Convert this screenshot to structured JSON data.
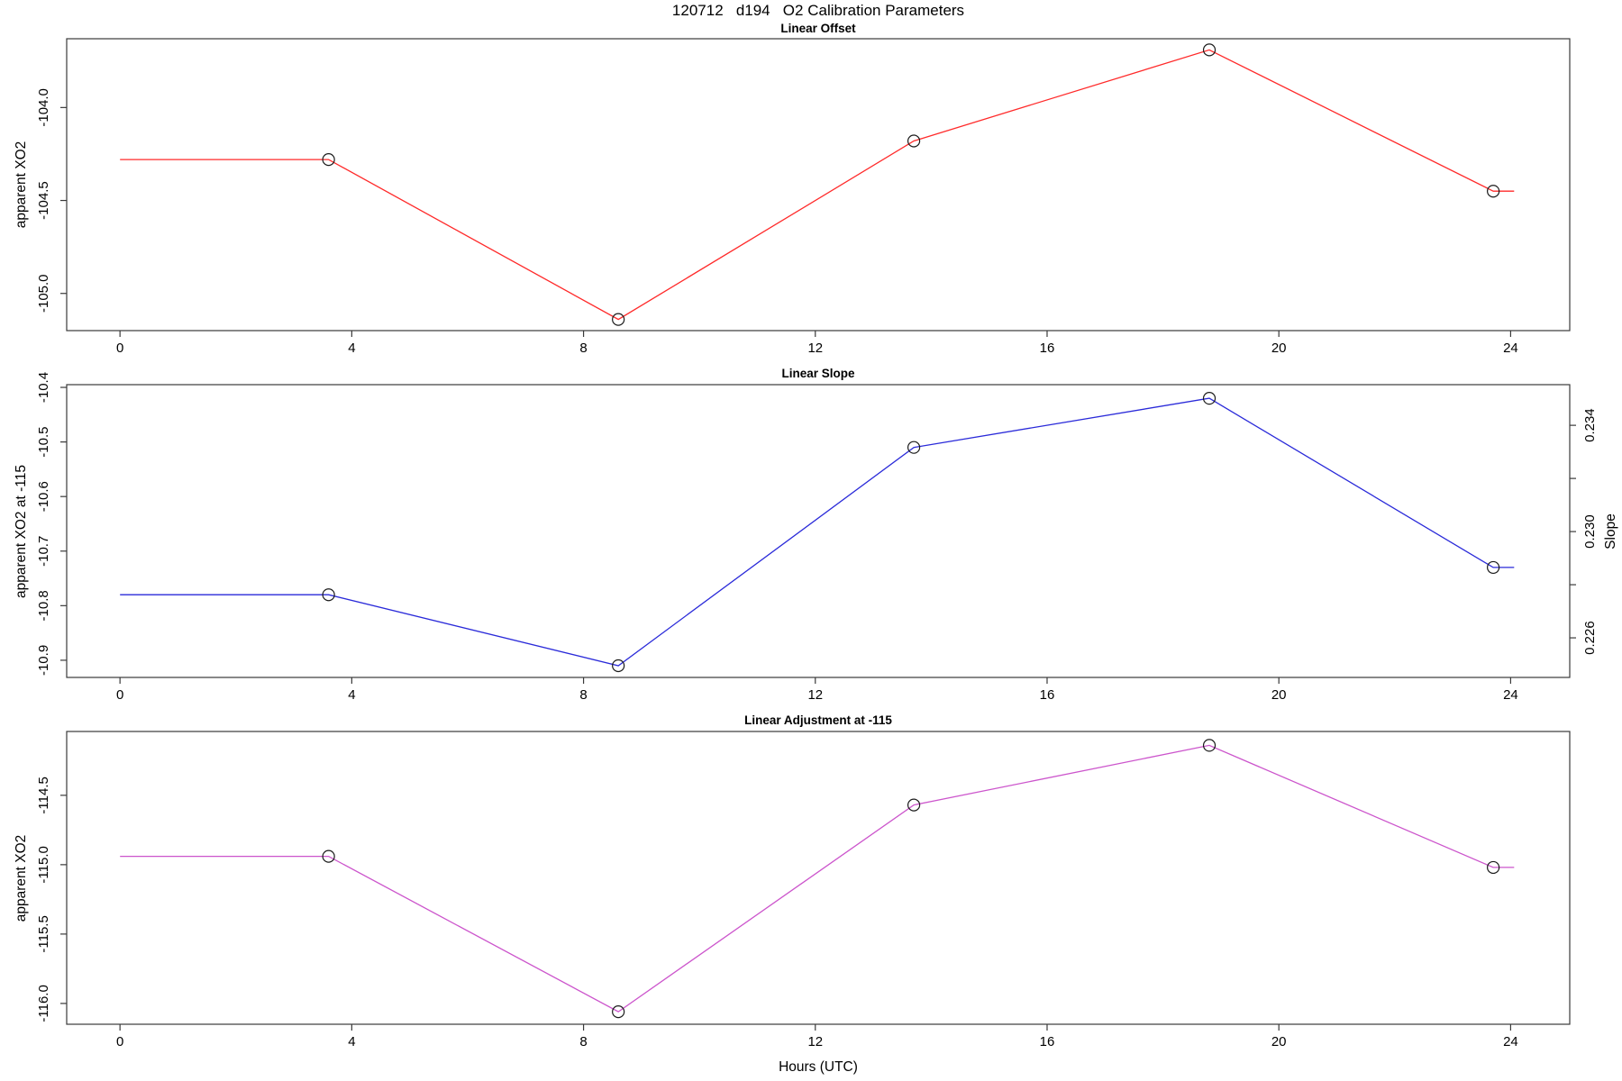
{
  "header": {
    "title": "120712   d194   O2 Calibration Parameters"
  },
  "xaxis": {
    "label": "Hours (UTC)"
  },
  "chart_data": [
    {
      "type": "line",
      "title": "Linear Offset",
      "series_color": "#ff2a2a",
      "marker": "open-circle",
      "marker_color": "#1a1a1a",
      "ylabel": "apparent XO2",
      "x": [
        3.6,
        8.6,
        13.7,
        18.8,
        23.7
      ],
      "y": [
        -104.28,
        -105.14,
        -104.18,
        -103.69,
        -104.45
      ],
      "flat_start_x": 0.0,
      "flat_end_x": 24.06,
      "xlim": [
        -0.92,
        25.02
      ],
      "ylim_top": -103.63,
      "ylim_bottom": -105.2,
      "xtick_values": [
        0,
        4,
        8,
        12,
        16,
        20,
        24
      ],
      "xtick_labels": [
        "0",
        "4",
        "8",
        "12",
        "16",
        "20",
        "24"
      ],
      "ytick_values": [
        -104.0,
        -104.5,
        -105.0
      ],
      "ytick_labels": [
        "-104.0",
        "-104.5",
        "-105.0"
      ],
      "grid": false
    },
    {
      "type": "line",
      "title": "Linear Slope",
      "series_color": "#2a2ad9",
      "marker": "open-circle",
      "marker_color": "#1a1a1a",
      "ylabel": "apparent XO2 at -115",
      "y2label": "Slope",
      "x": [
        3.6,
        8.6,
        13.7,
        18.8,
        23.7
      ],
      "y": [
        -10.78,
        -10.91,
        -10.51,
        -10.42,
        -10.73
      ],
      "flat_start_x": 0.0,
      "flat_end_x": 24.06,
      "xlim": [
        -0.92,
        25.02
      ],
      "ylim_top": -10.395,
      "ylim_bottom": -10.9315,
      "xtick_values": [
        0,
        4,
        8,
        12,
        16,
        20,
        24
      ],
      "xtick_labels": [
        "0",
        "4",
        "8",
        "12",
        "16",
        "20",
        "24"
      ],
      "ytick_values": [
        -10.4,
        -10.5,
        -10.6,
        -10.7,
        -10.8,
        -10.9
      ],
      "ytick_labels": [
        "-10.4",
        "-10.5",
        "-10.6",
        "-10.7",
        "-10.8",
        "-10.9"
      ],
      "y2tick_values": [
        0.226,
        0.228,
        0.23,
        0.232,
        0.234
      ],
      "y2tick_labels": [
        "0.226",
        "",
        "0.230",
        "",
        "0.234"
      ],
      "y2lim_top": 0.23553,
      "y2lim_bottom": 0.22451,
      "grid": false
    },
    {
      "type": "line",
      "title": "Linear Adjustment at -115",
      "series_color": "#cc55cc",
      "marker": "open-circle",
      "marker_color": "#1a1a1a",
      "ylabel": "apparent XO2",
      "x": [
        3.6,
        8.6,
        13.7,
        18.8,
        23.7
      ],
      "y": [
        -114.94,
        -116.06,
        -114.57,
        -114.14,
        -115.02
      ],
      "flat_start_x": 0.0,
      "flat_end_x": 24.06,
      "xlim": [
        -0.92,
        25.02
      ],
      "ylim_top": -114.04,
      "ylim_bottom": -116.15,
      "xtick_values": [
        0,
        4,
        8,
        12,
        16,
        20,
        24
      ],
      "xtick_labels": [
        "0",
        "4",
        "8",
        "12",
        "16",
        "20",
        "24"
      ],
      "ytick_values": [
        -114.5,
        -115.0,
        -115.5,
        -116.0
      ],
      "ytick_labels": [
        "-114.5",
        "-115.0",
        "-115.5",
        "-116.0"
      ],
      "grid": false
    }
  ]
}
